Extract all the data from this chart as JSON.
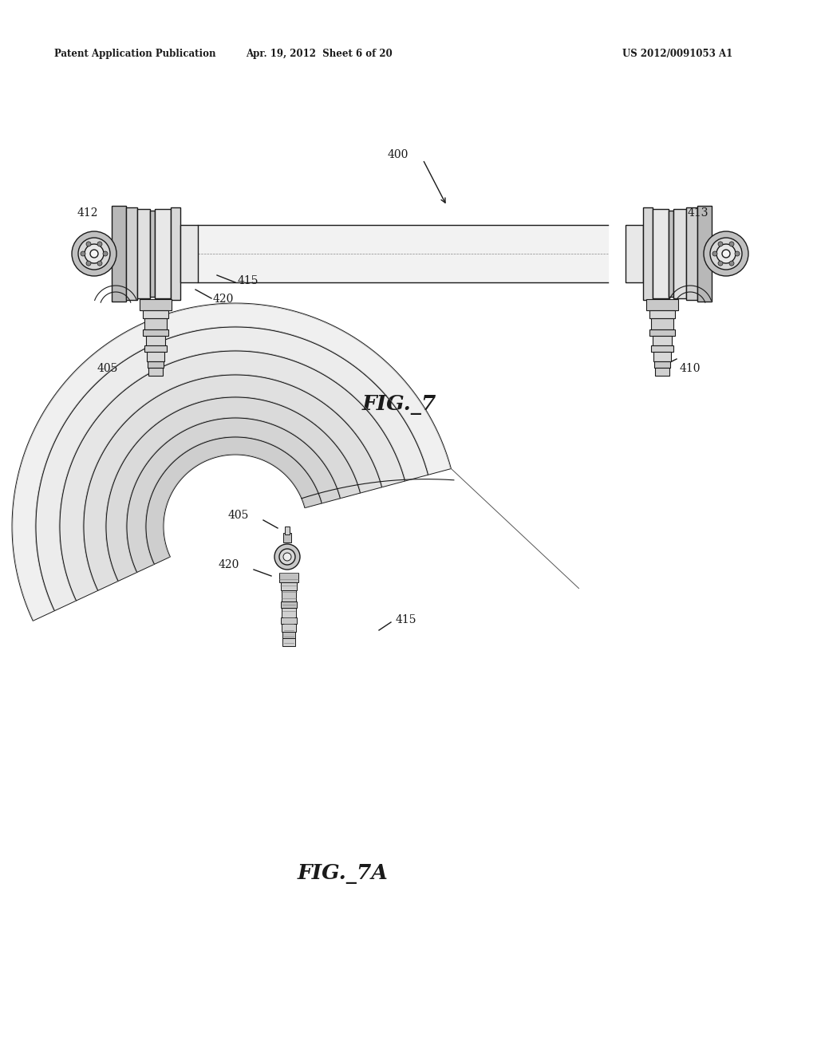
{
  "bg_color": "#ffffff",
  "header_left": "Patent Application Publication",
  "header_mid": "Apr. 19, 2012  Sheet 6 of 20",
  "header_right": "US 2012/0091053 A1",
  "fig7_label": "FIG._7",
  "fig7a_label": "FIG._7A",
  "label_400": "400",
  "label_412": "412",
  "label_413": "413",
  "label_415_fig7": "415",
  "label_420_fig7": "420",
  "label_405_fig7": "405",
  "label_410": "410",
  "label_405_fig7a": "405",
  "label_420_fig7a": "420",
  "label_415_fig7a": "415",
  "line_color": "#1a1a1a",
  "page_width": 10.24,
  "page_height": 13.2
}
